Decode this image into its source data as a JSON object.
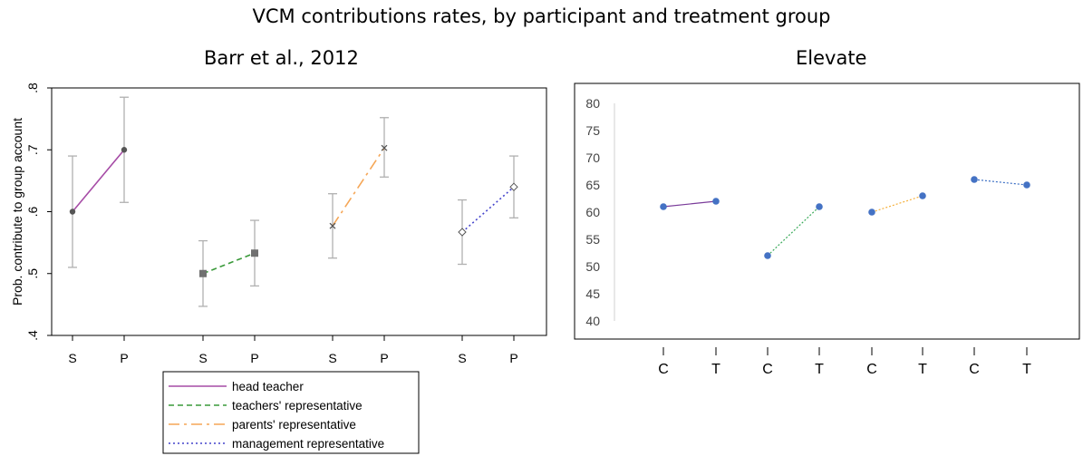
{
  "title": "VCM contributions rates, by participant and treatment group",
  "chart_data": [
    {
      "type": "line",
      "subtitle": "Barr et al., 2012",
      "ylabel": "Prob. contribute to group account",
      "ylim": [
        0.4,
        0.8
      ],
      "yticks": [
        ".4",
        ".5",
        ".6",
        ".7",
        ".8"
      ],
      "grid": false,
      "legend_position": "bottom",
      "categories": [
        "S",
        "P",
        "S",
        "P",
        "S",
        "P",
        "S",
        "P"
      ],
      "series": [
        {
          "name": "head teacher",
          "color": "#a64ca6",
          "dash": "solid",
          "marker": "circle",
          "points": [
            {
              "x": "S",
              "y": 0.6,
              "lo": 0.51,
              "hi": 0.69
            },
            {
              "x": "P",
              "y": 0.7,
              "lo": 0.615,
              "hi": 0.785
            }
          ]
        },
        {
          "name": "teachers' representative",
          "color": "#3a9a3a",
          "dash": "dash",
          "marker": "square",
          "points": [
            {
              "x": "S",
              "y": 0.5,
              "lo": 0.447,
              "hi": 0.553
            },
            {
              "x": "P",
              "y": 0.533,
              "lo": 0.48,
              "hi": 0.586
            }
          ]
        },
        {
          "name": "parents' representative",
          "color": "#f5a656",
          "dash": "longdash",
          "marker": "x",
          "points": [
            {
              "x": "S",
              "y": 0.577,
              "lo": 0.525,
              "hi": 0.629
            },
            {
              "x": "P",
              "y": 0.703,
              "lo": 0.656,
              "hi": 0.752
            }
          ]
        },
        {
          "name": "management representative",
          "color": "#4444cc",
          "dash": "dot",
          "marker": "diamond",
          "points": [
            {
              "x": "S",
              "y": 0.567,
              "lo": 0.515,
              "hi": 0.619
            },
            {
              "x": "P",
              "y": 0.64,
              "lo": 0.59,
              "hi": 0.69
            }
          ]
        }
      ]
    },
    {
      "type": "line",
      "subtitle": "Elevate",
      "ylim": [
        40,
        80
      ],
      "yticks": [
        "40",
        "45",
        "50",
        "55",
        "60",
        "65",
        "70",
        "75",
        "80"
      ],
      "grid": false,
      "categories": [
        "C",
        "T",
        "C",
        "T",
        "C",
        "T",
        "C",
        "T"
      ],
      "series": [
        {
          "color": "#7a3c9a",
          "points": [
            {
              "x": "C",
              "y": 61
            },
            {
              "x": "T",
              "y": 62
            }
          ]
        },
        {
          "color": "#3aaa5a",
          "points": [
            {
              "x": "C",
              "y": 52
            },
            {
              "x": "T",
              "y": 61
            }
          ]
        },
        {
          "color": "#f5b03c",
          "points": [
            {
              "x": "C",
              "y": 60
            },
            {
              "x": "T",
              "y": 63
            }
          ]
        },
        {
          "color": "#3a6ec4",
          "points": [
            {
              "x": "C",
              "y": 66
            },
            {
              "x": "T",
              "y": 65
            }
          ]
        }
      ],
      "marker_color": "#4472c4"
    }
  ]
}
